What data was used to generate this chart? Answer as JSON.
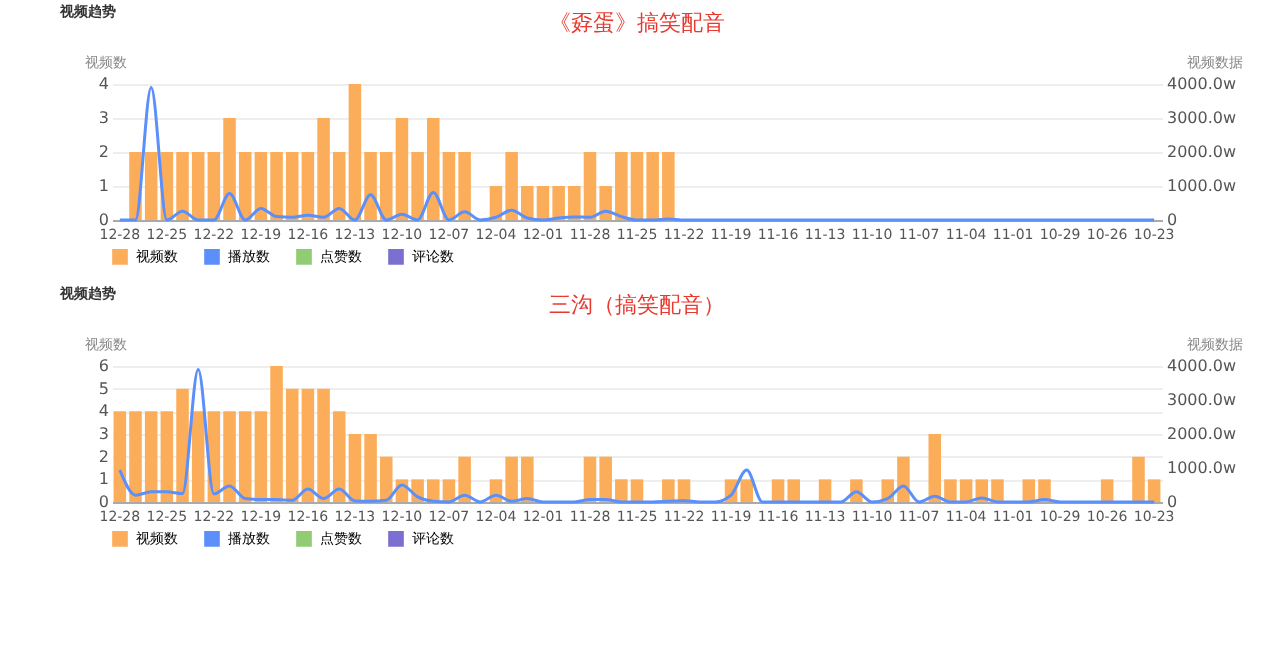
{
  "chart_data": [
    {
      "type": "bar",
      "title": "《孬蛋》搞笑配音",
      "annotations": [
        "视频趋势"
      ],
      "ylabel": "视频数",
      "y2label": "视频数据",
      "categories": [
        "12-28",
        null,
        null,
        "12-25",
        null,
        null,
        "12-22",
        null,
        null,
        "12-19",
        null,
        null,
        "12-16",
        null,
        null,
        "12-13",
        null,
        null,
        "12-10",
        null,
        null,
        "12-07",
        null,
        null,
        "12-04",
        null,
        null,
        "12-01",
        null,
        null,
        "11-28",
        null,
        null,
        "11-25",
        null,
        null,
        "11-22",
        null,
        null,
        "11-19",
        null,
        null,
        "11-16",
        null,
        null,
        "11-13",
        null,
        null,
        "11-10",
        null,
        null,
        "11-07",
        null,
        null,
        "11-04",
        null,
        null,
        "11-01",
        null,
        null,
        "10-29",
        null,
        null,
        "10-26",
        null,
        null,
        "10-23"
      ],
      "series": [
        {
          "name": "视频数",
          "color": "#fcad5a",
          "values": [
            0,
            2,
            2,
            2,
            2,
            2,
            2,
            3,
            2,
            2,
            2,
            2,
            2,
            3,
            2,
            4,
            2,
            2,
            3,
            2,
            3,
            2,
            2,
            0,
            1,
            2,
            1,
            1,
            1,
            1,
            2,
            1,
            2,
            2,
            2,
            2,
            0,
            0,
            0,
            0,
            0,
            0,
            0,
            0,
            0,
            0,
            0,
            0,
            0,
            0,
            0,
            0,
            0,
            0,
            0,
            0,
            0,
            0,
            0,
            0,
            0,
            0,
            0,
            0,
            0,
            0,
            0
          ]
        },
        {
          "name": "播放数",
          "type": "line",
          "axis": "y2",
          "color": "#5b8ff9",
          "values": [
            0,
            0,
            3900,
            0,
            260,
            0,
            0,
            780,
            0,
            340,
            100,
            80,
            140,
            80,
            340,
            0,
            740,
            0,
            170,
            0,
            810,
            0,
            240,
            0,
            80,
            290,
            60,
            0,
            60,
            90,
            80,
            260,
            100,
            0,
            0,
            30,
            0,
            0,
            0,
            0,
            0,
            0,
            0,
            0,
            0,
            0,
            0,
            0,
            0,
            0,
            0,
            0,
            0,
            0,
            0,
            0,
            0,
            0,
            0,
            0,
            0,
            0,
            0,
            0,
            0,
            0,
            0
          ]
        },
        {
          "name": "点赞数",
          "type": "line",
          "axis": "y2",
          "color": "#91cc75",
          "values": [
            null,
            null,
            null,
            null,
            null,
            null,
            null,
            null,
            null,
            null,
            null,
            null,
            null,
            null,
            null,
            null,
            null,
            null,
            null,
            null,
            null,
            null,
            null,
            null,
            null,
            null,
            null,
            null,
            null,
            null,
            null,
            null,
            null,
            null,
            null,
            null,
            null,
            null,
            null,
            null,
            null,
            null,
            null,
            null,
            null,
            null,
            null,
            null,
            null,
            null,
            null,
            null,
            null,
            null,
            null,
            null,
            null,
            null,
            null,
            null,
            null,
            null,
            null,
            null,
            null,
            null,
            null
          ]
        },
        {
          "name": "评论数",
          "type": "line",
          "axis": "y2",
          "color": "#7b6fd0",
          "values": [
            null,
            null,
            null,
            null,
            null,
            null,
            null,
            null,
            null,
            null,
            null,
            null,
            null,
            null,
            null,
            null,
            null,
            null,
            null,
            null,
            null,
            null,
            null,
            null,
            null,
            null,
            null,
            null,
            null,
            null,
            null,
            null,
            null,
            null,
            null,
            null,
            null,
            null,
            null,
            null,
            null,
            null,
            null,
            null,
            null,
            null,
            null,
            null,
            null,
            null,
            null,
            null,
            null,
            null,
            null,
            null,
            null,
            null,
            null,
            null,
            null,
            null,
            null,
            null,
            null,
            null,
            null
          ]
        }
      ],
      "ylim": [
        0,
        4
      ],
      "yticks": [
        0,
        1,
        2,
        3,
        4
      ],
      "y2lim": [
        0,
        4000
      ],
      "y2ticks": [
        0,
        {
          "value": 1000,
          "label": "1000.0w"
        },
        {
          "value": 2000,
          "label": "2000.0w"
        },
        {
          "value": 3000,
          "label": "3000.0w"
        },
        {
          "value": 4000,
          "label": "4000.0w"
        }
      ],
      "grid": "y",
      "legend": "bottom"
    },
    {
      "type": "bar",
      "title": "三沟（搞笑配音）",
      "annotations": [
        "视频趋势"
      ],
      "ylabel": "视频数",
      "y2label": "视频数据",
      "categories": [
        "12-28",
        null,
        null,
        "12-25",
        null,
        null,
        "12-22",
        null,
        null,
        "12-19",
        null,
        null,
        "12-16",
        null,
        null,
        "12-13",
        null,
        null,
        "12-10",
        null,
        null,
        "12-07",
        null,
        null,
        "12-04",
        null,
        null,
        "12-01",
        null,
        null,
        "11-28",
        null,
        null,
        "11-25",
        null,
        null,
        "11-22",
        null,
        null,
        "11-19",
        null,
        null,
        "11-16",
        null,
        null,
        "11-13",
        null,
        null,
        "11-10",
        null,
        null,
        "11-07",
        null,
        null,
        "11-04",
        null,
        null,
        "11-01",
        null,
        null,
        "10-29",
        null,
        null,
        "10-26",
        null,
        null,
        "10-23"
      ],
      "series": [
        {
          "name": "视频数",
          "color": "#fcad5a",
          "values": [
            4,
            4,
            4,
            4,
            5,
            4,
            4,
            4,
            4,
            4,
            6,
            5,
            5,
            5,
            4,
            3,
            3,
            2,
            1,
            1,
            1,
            1,
            2,
            0,
            1,
            2,
            2,
            0,
            0,
            0,
            2,
            2,
            1,
            1,
            0,
            1,
            1,
            0,
            0,
            1,
            1,
            0,
            1,
            1,
            0,
            1,
            0,
            1,
            0,
            1,
            2,
            0,
            3,
            1,
            1,
            1,
            1,
            0,
            1,
            1,
            0,
            0,
            0,
            1,
            0,
            2,
            1
          ]
        },
        {
          "name": "播放数",
          "type": "line",
          "axis": "y2",
          "color": "#5b8ff9",
          "values": [
            940,
            200,
            300,
            300,
            250,
            3900,
            240,
            470,
            100,
            70,
            70,
            50,
            380,
            100,
            380,
            30,
            20,
            50,
            500,
            150,
            20,
            0,
            200,
            0,
            200,
            20,
            100,
            0,
            0,
            0,
            70,
            70,
            0,
            0,
            0,
            20,
            40,
            0,
            0,
            200,
            940,
            0,
            0,
            0,
            0,
            0,
            0,
            300,
            0,
            100,
            470,
            0,
            170,
            0,
            0,
            120,
            0,
            0,
            0,
            70,
            0,
            0,
            0,
            0,
            0,
            0,
            0
          ]
        },
        {
          "name": "点赞数",
          "type": "line",
          "axis": "y2",
          "color": "#91cc75",
          "values": [
            null,
            null,
            null,
            null,
            null,
            null,
            null,
            null,
            null,
            null,
            null,
            null,
            null,
            null,
            null,
            null,
            null,
            null,
            null,
            null,
            null,
            null,
            null,
            null,
            null,
            null,
            null,
            null,
            null,
            null,
            null,
            null,
            null,
            null,
            null,
            null,
            null,
            null,
            null,
            null,
            null,
            null,
            null,
            null,
            null,
            null,
            null,
            null,
            null,
            null,
            null,
            null,
            null,
            null,
            null,
            null,
            null,
            null,
            null,
            null,
            null,
            null,
            null,
            null,
            null,
            null,
            null
          ]
        },
        {
          "name": "评论数",
          "type": "line",
          "axis": "y2",
          "color": "#7b6fd0",
          "values": [
            null,
            null,
            null,
            null,
            null,
            null,
            null,
            null,
            null,
            null,
            null,
            null,
            null,
            null,
            null,
            null,
            null,
            null,
            null,
            null,
            null,
            null,
            null,
            null,
            null,
            null,
            null,
            null,
            null,
            null,
            null,
            null,
            null,
            null,
            null,
            null,
            null,
            null,
            null,
            null,
            null,
            null,
            null,
            null,
            null,
            null,
            null,
            null,
            null,
            null,
            null,
            null,
            null,
            null,
            null,
            null,
            null,
            null,
            null,
            null,
            null,
            null,
            null,
            null,
            null,
            null,
            null
          ]
        }
      ],
      "ylim": [
        0,
        6
      ],
      "yticks": [
        0,
        1,
        2,
        3,
        4,
        5,
        6
      ],
      "y2lim": [
        0,
        4000
      ],
      "y2ticks": [
        0,
        {
          "value": 1000,
          "label": "1000.0w"
        },
        {
          "value": 2000,
          "label": "2000.0w"
        },
        {
          "value": 3000,
          "label": "3000.0w"
        },
        {
          "value": 4000,
          "label": "4000.0w"
        }
      ],
      "grid": "y",
      "legend": "bottom"
    }
  ]
}
